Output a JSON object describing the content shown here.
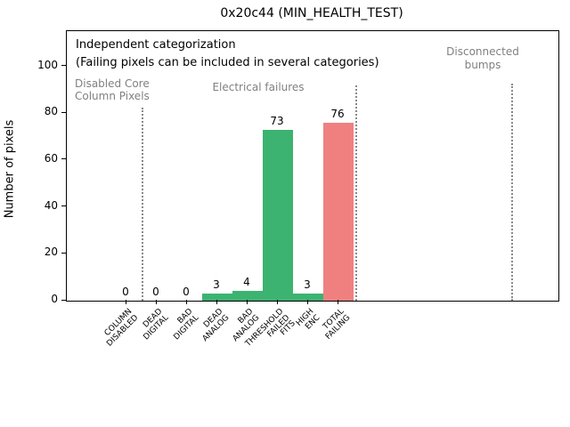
{
  "header": {
    "title": "0x20c44 (MIN_HEALTH_TEST)"
  },
  "annotations": {
    "independent_line1": "Independent categorization",
    "independent_line2": "(Failing pixels can be included in several categories)",
    "section_disabled_core": "Disabled Core\nColumn Pixels",
    "section_electrical": "Electrical failures",
    "section_disconnected": "Disconnected\nbumps"
  },
  "chart_data": {
    "type": "bar",
    "title": "0x20c44 (MIN_HEALTH_TEST)",
    "categories": [
      "COLUMN\nDISABLED",
      "DEAD\nDIGITAL",
      "BAD\nDIGITAL",
      "DEAD\nANALOG",
      "BAD\nANALOG",
      "THRESHOLD\nFAILED\nFITS",
      "HIGH\nENC",
      "TOTAL\nFAILING"
    ],
    "values": [
      0,
      0,
      0,
      3,
      4,
      73,
      3,
      76
    ],
    "bar_value_labels": [
      "0",
      "0",
      "0",
      "3",
      "4",
      "73",
      "3",
      "76"
    ],
    "bar_colors": [
      "#3cb371",
      "#3cb371",
      "#3cb371",
      "#3cb371",
      "#3cb371",
      "#3cb371",
      "#3cb371",
      "#f08080"
    ],
    "xlabel": "",
    "ylabel": "Number of pixels",
    "yticks": [
      0,
      20,
      40,
      60,
      80,
      100
    ],
    "ylim": [
      0,
      115
    ],
    "grid": false,
    "legend": null,
    "sections": [
      {
        "label": "Disabled Core Column Pixels",
        "categories": [
          "COLUMN DISABLED"
        ]
      },
      {
        "label": "Electrical failures",
        "categories": [
          "DEAD DIGITAL",
          "BAD DIGITAL",
          "DEAD ANALOG",
          "BAD ANALOG",
          "THRESHOLD FAILED FITS",
          "HIGH ENC",
          "TOTAL FAILING"
        ]
      },
      {
        "label": "Disconnected bumps",
        "categories": []
      }
    ],
    "annotation_note": "Independent categorization (Failing pixels can be included in several categories)"
  },
  "colors": {
    "bar_green": "#3cb371",
    "bar_red": "#f08080",
    "gray_text": "#808080",
    "separator_gray": "#8a8a8a",
    "axis_black": "#000000",
    "background": "#ffffff"
  }
}
